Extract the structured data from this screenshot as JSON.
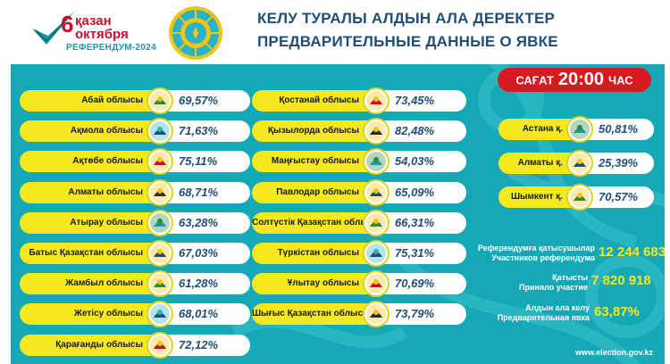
{
  "header": {
    "logo": {
      "day": "6",
      "month_kk": "қазан",
      "month_ru": "октября",
      "subtitle": "РЕФЕРЕНДУМ-2024"
    },
    "title_kk": "КЕЛУ ТУРАЛЫ АЛДЫН АЛА ДЕРЕКТЕР",
    "title_ru": "ПРЕДВАРИТЕЛЬНЫЕ ДАННЫЕ О ЯВКЕ"
  },
  "time": {
    "prefix": "САҒАТ",
    "value": "20:00",
    "suffix": "ЧАС"
  },
  "regions_col1": [
    {
      "name": "Абай облысы",
      "turnout": "69,57%",
      "icon": "abai-region-emblem"
    },
    {
      "name": "Ақмола облысы",
      "turnout": "71,63%",
      "icon": "akmola-region-emblem"
    },
    {
      "name": "Ақтөбе облысы",
      "turnout": "75,11%",
      "icon": "aktobe-region-emblem"
    },
    {
      "name": "Алматы облысы",
      "turnout": "68,71%",
      "icon": "almaty-region-emblem"
    },
    {
      "name": "Атырау облысы",
      "turnout": "63,28%",
      "icon": "atyrau-region-emblem"
    },
    {
      "name": "Батыс Қазақстан облысы",
      "turnout": "67,03%",
      "icon": "west-kazakhstan-emblem"
    },
    {
      "name": "Жамбыл облысы",
      "turnout": "61,28%",
      "icon": "zhambyl-region-emblem"
    },
    {
      "name": "Жетісу облысы",
      "turnout": "68,01%",
      "icon": "zhetisu-region-emblem"
    },
    {
      "name": "Қарағанды облысы",
      "turnout": "72,12%",
      "icon": "karaganda-region-emblem"
    }
  ],
  "regions_col2": [
    {
      "name": "Қостанай облысы",
      "turnout": "73,45%",
      "icon": "kostanay-region-emblem"
    },
    {
      "name": "Қызылорда облысы",
      "turnout": "82,48%",
      "icon": "kyzylorda-region-emblem"
    },
    {
      "name": "Маңғыстау облысы",
      "turnout": "54,03%",
      "icon": "mangystau-region-emblem"
    },
    {
      "name": "Павлодар облысы",
      "turnout": "65,09%",
      "icon": "pavlodar-region-emblem"
    },
    {
      "name": "Солтүстік Қазақстан облысы",
      "turnout": "66,31%",
      "icon": "north-kazakhstan-emblem"
    },
    {
      "name": "Түркістан облысы",
      "turnout": "75,31%",
      "icon": "turkistan-region-emblem"
    },
    {
      "name": "Ұлытау облысы",
      "turnout": "70,69%",
      "icon": "ulytau-region-emblem"
    },
    {
      "name": "Шығыс Қазақстан облысы",
      "turnout": "73,79%",
      "icon": "east-kazakhstan-emblem"
    }
  ],
  "cities": [
    {
      "name": "Астана қ.",
      "turnout": "50,81%",
      "icon": "astana-emblem"
    },
    {
      "name": "Алматы қ.",
      "turnout": "25,39%",
      "icon": "almaty-city-emblem"
    },
    {
      "name": "Шымкент қ.",
      "turnout": "70,57%",
      "icon": "shymkent-emblem"
    }
  ],
  "stats": {
    "participants_kk": "Референдумға қатысушылар",
    "participants_ru": "Участников референдума",
    "participants_value": "12 244 683",
    "voted_kk": "Қатысты",
    "voted_ru": "Приняло участие",
    "voted_value": "7 820 918",
    "turnout_kk": "Алдын ала келу",
    "turnout_ru": "Предварительная явка",
    "turnout_value": "63,87%"
  },
  "website": "www.election.gov.kz",
  "colors": {
    "panel": "#15a9b8",
    "pill_yellow": "#f4e81e",
    "time_red": "#d71920",
    "title_blue": "#1f4e79",
    "logo_red": "#c8102e"
  }
}
